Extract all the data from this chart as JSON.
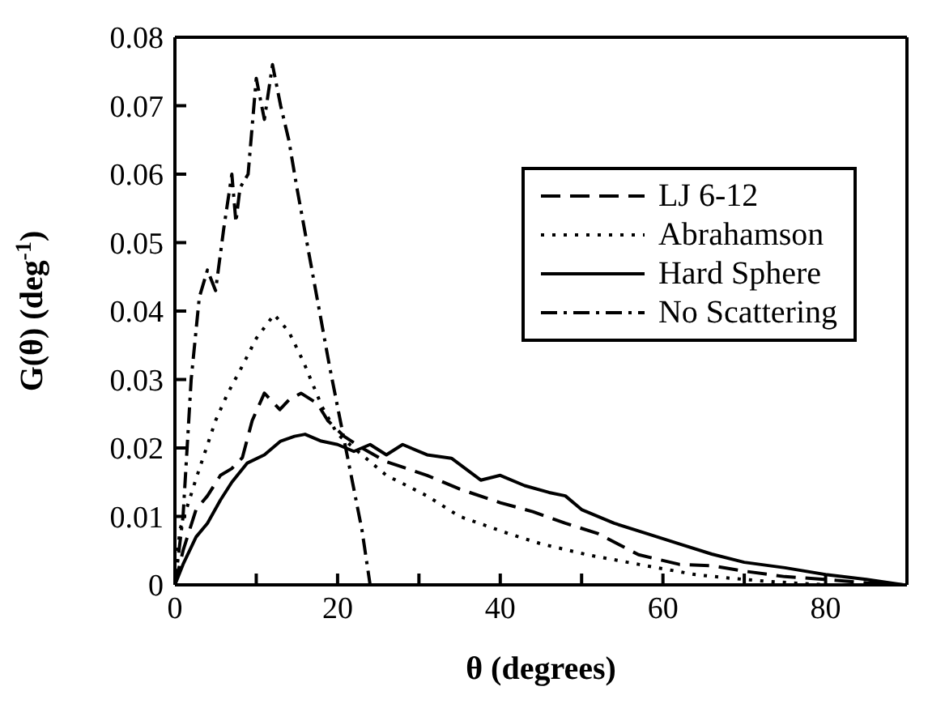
{
  "chart_data": {
    "type": "line",
    "xlabel": "θ (degrees)",
    "ylabel": "G(θ)  (deg$^{-1}$)",
    "xlim": [
      0,
      90
    ],
    "xticks": [
      0,
      {
        "value": 10,
        "label": null
      },
      20,
      {
        "value": 30,
        "label": null
      },
      40,
      {
        "value": 50,
        "label": null
      },
      60,
      {
        "value": 70,
        "label": null
      },
      80
    ],
    "ylim": [
      0,
      0.08
    ],
    "yticks": [
      0,
      0.01,
      0.02,
      0.03,
      0.04,
      0.05,
      0.06,
      0.07,
      0.08
    ],
    "legend": "top right",
    "grid": false,
    "marker": "none",
    "series": [
      {
        "name": "LJ 6-12",
        "color": "#000000",
        "line_style": "dashed",
        "x": [
          0,
          1,
          2.6,
          4,
          5.6,
          7,
          8.3,
          9.5,
          11,
          12.9,
          14,
          15.5,
          17.5,
          18.8,
          20.8,
          23,
          26,
          31,
          35,
          40,
          44,
          48,
          52,
          57,
          62,
          66,
          70,
          75,
          80,
          85,
          89.6
        ],
        "values": [
          0,
          0.005,
          0.011,
          0.013,
          0.016,
          0.017,
          0.0186,
          0.024,
          0.028,
          0.0256,
          0.027,
          0.028,
          0.0265,
          0.024,
          0.0217,
          0.02,
          0.018,
          0.016,
          0.014,
          0.012,
          0.0107,
          0.009,
          0.0075,
          0.0044,
          0.003,
          0.0028,
          0.002,
          0.0012,
          0.0008,
          0.0003,
          0
        ]
      },
      {
        "name": "Abrahamson",
        "color": "#000000",
        "line_style": "dotted",
        "x": [
          0,
          0.6,
          2.6,
          5,
          6.5,
          8.3,
          10,
          12.2,
          14,
          15.8,
          18.1,
          20,
          23,
          26,
          31,
          35,
          41,
          45,
          50.7,
          57,
          64,
          68,
          73,
          80
        ],
        "values": [
          0,
          0.008,
          0.0155,
          0.024,
          0.028,
          0.032,
          0.036,
          0.0395,
          0.037,
          0.0326,
          0.026,
          0.022,
          0.019,
          0.016,
          0.013,
          0.01,
          0.0075,
          0.006,
          0.0044,
          0.003,
          0.0015,
          0.001,
          0.0005,
          0
        ]
      },
      {
        "name": "Hard Sphere",
        "color": "#000000",
        "line_style": "solid",
        "x": [
          0,
          1,
          2.6,
          4,
          5.6,
          7,
          8.9,
          11,
          13,
          14.7,
          16,
          18,
          20,
          22,
          24,
          26,
          28,
          31,
          34,
          37.6,
          40,
          43,
          46,
          48,
          50,
          54,
          58,
          62,
          66,
          70,
          75,
          80,
          85,
          89.6
        ],
        "values": [
          0,
          0.003,
          0.007,
          0.009,
          0.0124,
          0.015,
          0.0178,
          0.019,
          0.021,
          0.0217,
          0.022,
          0.021,
          0.0205,
          0.0195,
          0.0205,
          0.019,
          0.0205,
          0.019,
          0.0185,
          0.0153,
          0.016,
          0.0145,
          0.0135,
          0.013,
          0.011,
          0.009,
          0.0075,
          0.006,
          0.0045,
          0.0033,
          0.0025,
          0.0015,
          0.0008,
          0
        ]
      },
      {
        "name": "No Scattering",
        "color": "#000000",
        "line_style": "dashdot",
        "x": [
          0,
          1,
          2,
          3,
          4,
          5,
          6,
          7,
          7.5,
          8,
          9,
          10,
          11,
          12,
          13,
          14,
          15,
          17,
          19,
          21,
          23,
          24
        ],
        "values": [
          0,
          0.01,
          0.03,
          0.042,
          0.046,
          0.043,
          0.052,
          0.06,
          0.053,
          0.058,
          0.06,
          0.074,
          0.068,
          0.076,
          0.07,
          0.065,
          0.058,
          0.045,
          0.032,
          0.02,
          0.008,
          0
        ]
      }
    ]
  }
}
